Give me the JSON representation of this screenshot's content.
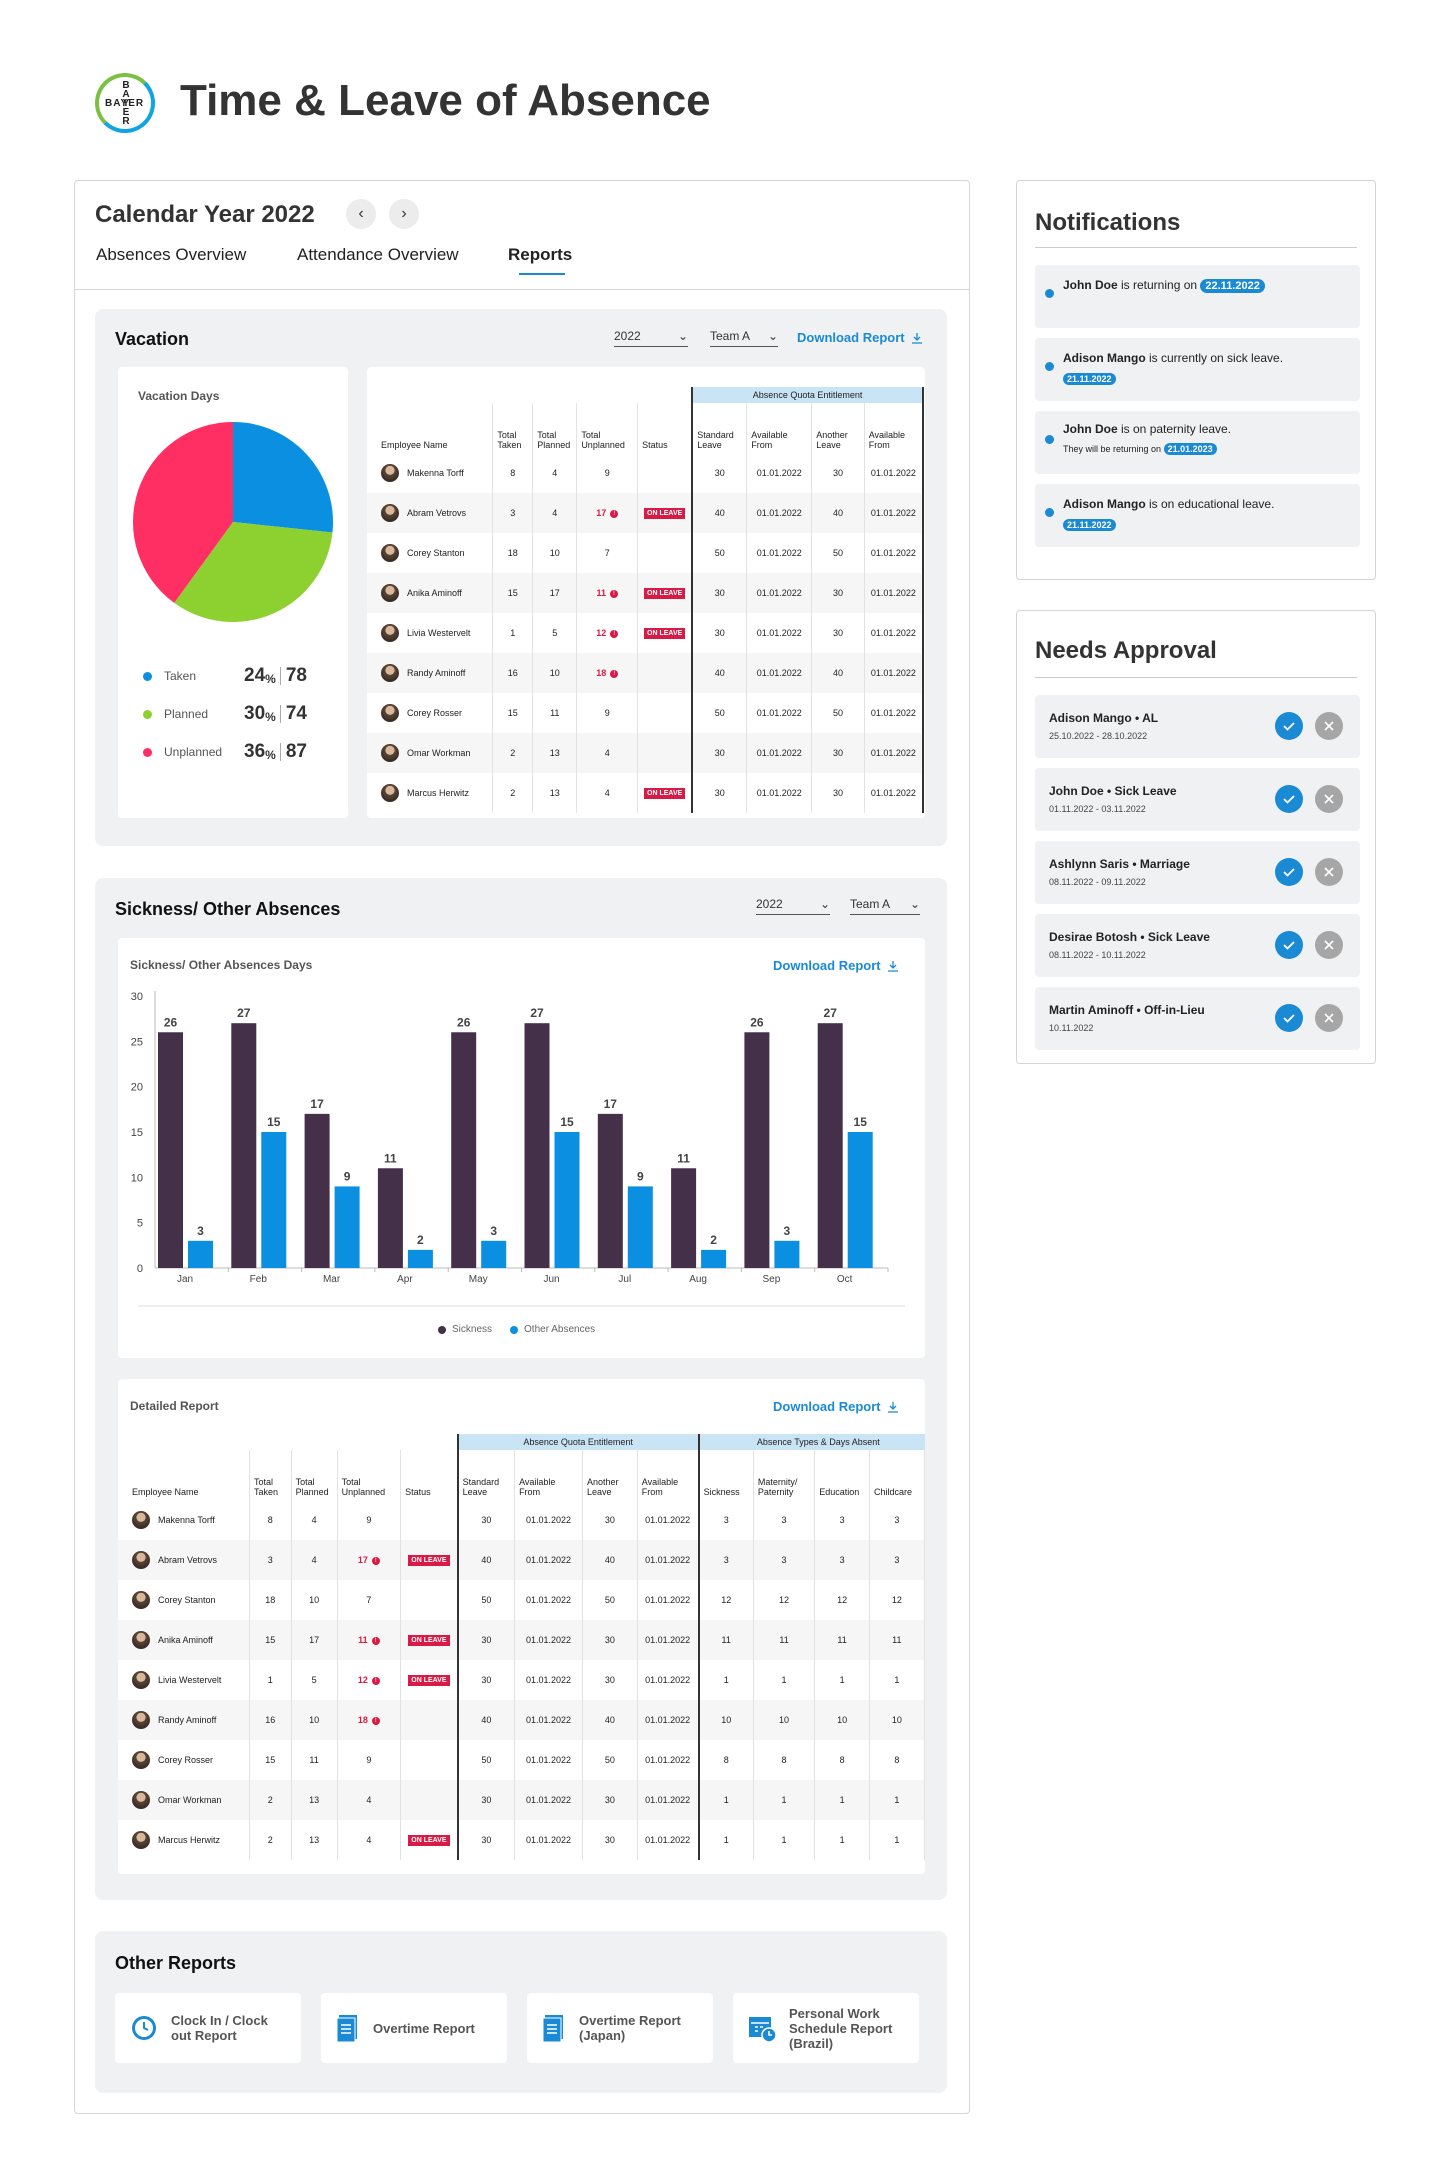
{
  "app": {
    "title": "Time & Leave of Absence",
    "logo_text": "BAYER"
  },
  "calendar": {
    "title": "Calendar Year 2022",
    "prev_icon": "chevron-left-icon",
    "next_icon": "chevron-right-icon",
    "tabs": [
      {
        "label": "Absences Overview"
      },
      {
        "label": "Attendance Overview"
      },
      {
        "label": "Reports",
        "active": true
      }
    ]
  },
  "vacation": {
    "title": "Vacation",
    "year": "2022",
    "team": "Team A",
    "download": "Download Report",
    "chart_title": "Vacation Days",
    "chart_data": {
      "type": "pie",
      "title": "Vacation Days",
      "slices": [
        {
          "name": "Taken",
          "percent": 24,
          "value": 78,
          "color": "#0b8fe0"
        },
        {
          "name": "Planned",
          "percent": 30,
          "value": 74,
          "color": "#8cd12f"
        },
        {
          "name": "Unplanned",
          "percent": 36,
          "value": 87,
          "color": "#ff2e63"
        }
      ]
    },
    "legend": [
      {
        "label": "Taken",
        "pct": "24",
        "unit": "%",
        "val": "78",
        "color": "#0b8fe0"
      },
      {
        "label": "Planned",
        "pct": "30",
        "unit": "%",
        "val": "74",
        "color": "#8cd12f"
      },
      {
        "label": "Unplanned",
        "pct": "36",
        "unit": "%",
        "val": "87",
        "color": "#ff2e63"
      }
    ]
  },
  "table_headers": {
    "quota_band": "Absence Quota Entitlement",
    "types_band": "Absence Types & Days Absent",
    "employee": "Employee Name",
    "taken": "Total Taken",
    "planned": "Total Planned",
    "unplanned": "Total Unplanned",
    "status": "Status",
    "std": "Standard Leave",
    "avail1": "Available From",
    "another": "Another Leave",
    "avail2": "Available From",
    "sickness": "Sickness",
    "maternity": "Maternity/ Paternity",
    "education": "Education",
    "childcare": "Childcare",
    "more": "("
  },
  "employees": [
    {
      "name": "Makenna Torff",
      "taken": "8",
      "planned": "4",
      "unplanned": "9",
      "flag": false,
      "status": "",
      "std": "30",
      "from1": "01.01.2022",
      "another": "30",
      "from2": "01.01.2022",
      "types": [
        "3",
        "3",
        "3",
        "3"
      ]
    },
    {
      "name": "Abram Vetrovs",
      "taken": "3",
      "planned": "4",
      "unplanned": "17",
      "flag": true,
      "status": "ON LEAVE",
      "std": "40",
      "from1": "01.01.2022",
      "another": "40",
      "from2": "01.01.2022",
      "types": [
        "3",
        "3",
        "3",
        "3"
      ]
    },
    {
      "name": "Corey Stanton",
      "taken": "18",
      "planned": "10",
      "unplanned": "7",
      "flag": false,
      "status": "",
      "std": "50",
      "from1": "01.01.2022",
      "another": "50",
      "from2": "01.01.2022",
      "types": [
        "12",
        "12",
        "12",
        "12"
      ]
    },
    {
      "name": "Anika Aminoff",
      "taken": "15",
      "planned": "17",
      "unplanned": "11",
      "flag": true,
      "status": "ON LEAVE",
      "std": "30",
      "from1": "01.01.2022",
      "another": "30",
      "from2": "01.01.2022",
      "types": [
        "11",
        "11",
        "11",
        "11"
      ]
    },
    {
      "name": "Livia Westervelt",
      "taken": "1",
      "planned": "5",
      "unplanned": "12",
      "flag": true,
      "status": "ON LEAVE",
      "std": "30",
      "from1": "01.01.2022",
      "another": "30",
      "from2": "01.01.2022",
      "types": [
        "1",
        "1",
        "1",
        "1"
      ]
    },
    {
      "name": "Randy Aminoff",
      "taken": "16",
      "planned": "10",
      "unplanned": "18",
      "flag": true,
      "status": "",
      "std": "40",
      "from1": "01.01.2022",
      "another": "40",
      "from2": "01.01.2022",
      "types": [
        "10",
        "10",
        "10",
        "10"
      ]
    },
    {
      "name": "Corey Rosser",
      "taken": "15",
      "planned": "11",
      "unplanned": "9",
      "flag": false,
      "status": "",
      "std": "50",
      "from1": "01.01.2022",
      "another": "50",
      "from2": "01.01.2022",
      "types": [
        "8",
        "8",
        "8",
        "8"
      ]
    },
    {
      "name": "Omar Workman",
      "taken": "2",
      "planned": "13",
      "unplanned": "4",
      "flag": false,
      "status": "",
      "std": "30",
      "from1": "01.01.2022",
      "another": "30",
      "from2": "01.01.2022",
      "types": [
        "1",
        "1",
        "1",
        "1"
      ]
    },
    {
      "name": "Marcus Herwitz",
      "taken": "2",
      "planned": "13",
      "unplanned": "4",
      "flag": false,
      "status": "ON LEAVE",
      "std": "30",
      "from1": "01.01.2022",
      "another": "30",
      "from2": "01.01.2022",
      "types": [
        "1",
        "1",
        "1",
        "1"
      ]
    }
  ],
  "sickness": {
    "title": "Sickness/ Other Absences",
    "year": "2022",
    "team": "Team A",
    "chart_title": "Sickness/ Other Absences Days",
    "download": "Download Report",
    "chart_data": {
      "type": "bar",
      "title": "Sickness/ Other Absences Days",
      "categories": [
        "Jan",
        "Feb",
        "Mar",
        "Apr",
        "May",
        "Jun",
        "Jul",
        "Aug",
        "Sep",
        "Oct"
      ],
      "ylim": [
        0,
        30
      ],
      "yticks": [
        0,
        5,
        10,
        15,
        20,
        25,
        30
      ],
      "series": [
        {
          "name": "Sickness",
          "color": "#45304a",
          "values": [
            26,
            27,
            17,
            11,
            26,
            27,
            17,
            11,
            26,
            27
          ]
        },
        {
          "name": "Other Absences",
          "color": "#0b8fe0",
          "values": [
            3,
            15,
            9,
            2,
            3,
            15,
            9,
            2,
            3,
            15
          ]
        }
      ]
    },
    "legend": [
      {
        "label": "Sickness",
        "color": "#45304a"
      },
      {
        "label": "Other Absences",
        "color": "#0b8fe0"
      }
    ]
  },
  "detailed": {
    "title": "Detailed Report",
    "download": "Download Report"
  },
  "other_reports": {
    "title": "Other Reports",
    "items": [
      {
        "label": "Clock In / Clock out Report",
        "icon": "clock-icon"
      },
      {
        "label": "Overtime Report",
        "icon": "document-icon"
      },
      {
        "label": "Overtime Report (Japan)",
        "icon": "document-icon"
      },
      {
        "label": "Personal Work Schedule Report (Brazil)",
        "icon": "calendar-clock-icon"
      }
    ]
  },
  "notifications": {
    "title": "Notifications",
    "items": [
      {
        "name": "John Doe",
        "text": " is returning on ",
        "date": "22.11.2022",
        "sub": ""
      },
      {
        "name": "Adison Mango",
        "text": " is currently on sick leave.",
        "date": "21.11.2022",
        "sub": ""
      },
      {
        "name": "John Doe",
        "text": " is on paternity leave.",
        "date": "21.01.2023",
        "sub": "They will be returning on "
      },
      {
        "name": "Adison Mango",
        "text": " is on educational leave.",
        "date": "21.11.2022",
        "sub": ""
      }
    ]
  },
  "approval": {
    "title": "Needs Approval",
    "items": [
      {
        "title": "Adison Mango • AL",
        "dates": "25.10.2022 - 28.10.2022"
      },
      {
        "title": "John Doe • Sick Leave",
        "dates": "01.11.2022 - 03.11.2022"
      },
      {
        "title": "Ashlynn Saris • Marriage",
        "dates": "08.11.2022 - 09.11.2022"
      },
      {
        "title": "Desirae Botosh • Sick Leave",
        "dates": "08.11.2022 - 10.11.2022"
      },
      {
        "title": "Martin Aminoff • Off-in-Lieu",
        "dates": "10.11.2022"
      }
    ]
  }
}
